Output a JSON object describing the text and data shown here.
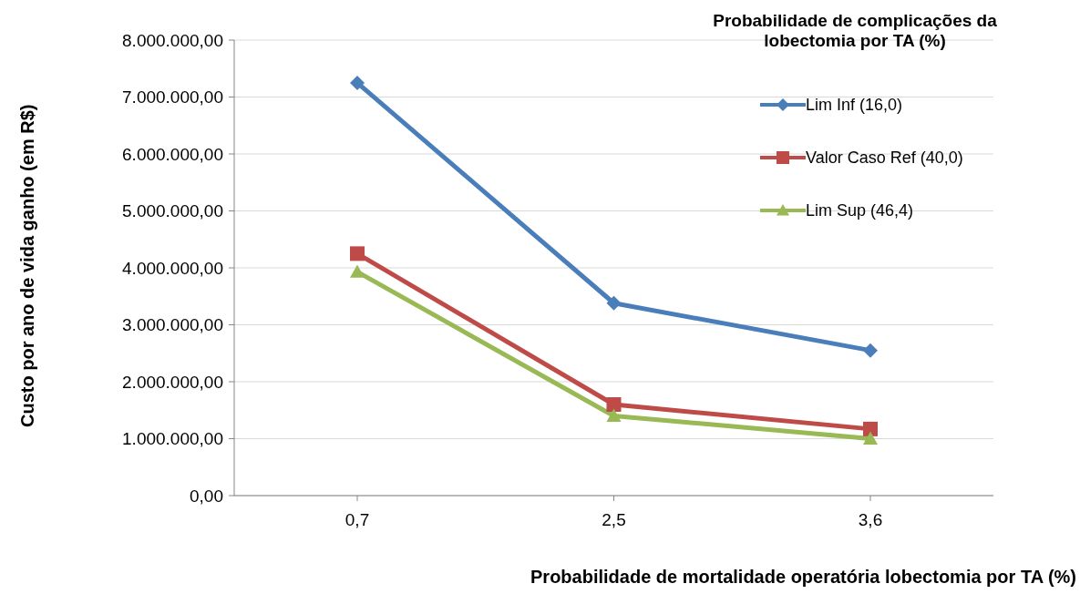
{
  "chart_data": {
    "type": "line",
    "legend_title": "Probabilidade de complicações da lobectomia por TA (%)",
    "xlabel": "Probabilidade de mortalidade operatória lobectomia por TA (%)",
    "ylabel": "Custo por ano de vida ganho (em R$)",
    "categories": [
      "0,7",
      "2,5",
      "3,6"
    ],
    "series": [
      {
        "name": "Lim Inf (16,0)",
        "color": "#4a7ebb",
        "marker": "diamond",
        "values": [
          7250000,
          3380000,
          2550000
        ]
      },
      {
        "name": "Valor Caso Ref (40,0)",
        "color": "#be4b48",
        "marker": "square",
        "values": [
          4250000,
          1600000,
          1170000
        ]
      },
      {
        "name": "Lim Sup (46,4)",
        "color": "#98b954",
        "marker": "triangle",
        "values": [
          3930000,
          1400000,
          1000000
        ]
      }
    ],
    "ylim": [
      0,
      8000000
    ],
    "yticks": [
      {
        "value": 0,
        "label": "0,00"
      },
      {
        "value": 1000000,
        "label": "1.000.000,00"
      },
      {
        "value": 2000000,
        "label": "2.000.000,00"
      },
      {
        "value": 3000000,
        "label": "3.000.000,00"
      },
      {
        "value": 4000000,
        "label": "4.000.000,00"
      },
      {
        "value": 5000000,
        "label": "5.000.000,00"
      },
      {
        "value": 6000000,
        "label": "6.000.000,00"
      },
      {
        "value": 7000000,
        "label": "7.000.000,00"
      },
      {
        "value": 8000000,
        "label": "8.000.000,00"
      }
    ],
    "grid": "y",
    "legend": "top right",
    "line_style": "solid"
  }
}
